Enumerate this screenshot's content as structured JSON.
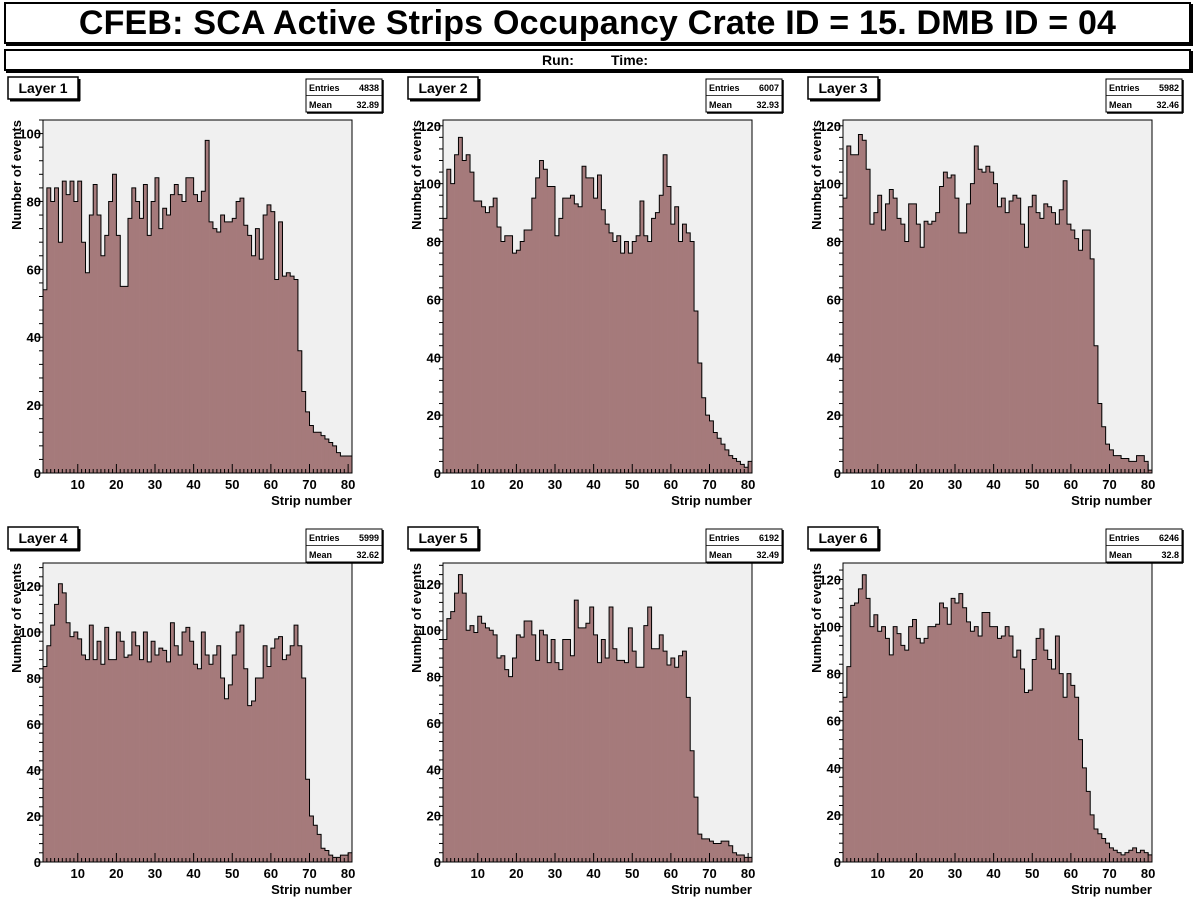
{
  "header": {
    "title": "CFEB: SCA Active Strips Occupancy Crate ID = 15. DMB ID = 04",
    "run_label": "Run:",
    "time_label": "Time:"
  },
  "colors": {
    "fill": "#a57a7b",
    "plot_bg": "#f0f0f0",
    "line": "#000000"
  },
  "chart_data": [
    {
      "type": "bar",
      "title": "Layer 1",
      "stats": {
        "entries_label": "Entries",
        "entries": "4838",
        "mean_label": "Mean",
        "mean": "32.89"
      },
      "xlabel": "Strip number",
      "ylabel": "Number of events",
      "xlim": [
        1,
        81
      ],
      "ylim": [
        0,
        104
      ],
      "xticks": [
        10,
        20,
        30,
        40,
        50,
        60,
        70,
        80
      ],
      "yticks": [
        0,
        20,
        40,
        60,
        80,
        100
      ],
      "ytick_labels": [
        "0",
        "20",
        "40",
        "60",
        "80",
        "100"
      ],
      "values": [
        54,
        84,
        80,
        84,
        68,
        86,
        82,
        86,
        80,
        86,
        68,
        59,
        76,
        85,
        76,
        64,
        70,
        80,
        88,
        70,
        55,
        55,
        75,
        84,
        80,
        75,
        85,
        70,
        80,
        87,
        72,
        78,
        76,
        82,
        85,
        82,
        80,
        87,
        87,
        82,
        80,
        83,
        98,
        74,
        72,
        71,
        76,
        74,
        74,
        75,
        80,
        81,
        73,
        70,
        64,
        72,
        63,
        76,
        79,
        77,
        57,
        74,
        58,
        59,
        58,
        57,
        36,
        24,
        18,
        14,
        12,
        12,
        11,
        10,
        9,
        8,
        6,
        5,
        5,
        5
      ]
    },
    {
      "type": "bar",
      "title": "Layer 2",
      "stats": {
        "entries_label": "Entries",
        "entries": "6007",
        "mean_label": "Mean",
        "mean": "32.93"
      },
      "xlabel": "Strip number",
      "ylabel": "Number of events",
      "xlim": [
        1,
        81
      ],
      "ylim": [
        0,
        122
      ],
      "xticks": [
        10,
        20,
        30,
        40,
        50,
        60,
        70,
        80
      ],
      "yticks": [
        0,
        20,
        40,
        60,
        80,
        100,
        120
      ],
      "ytick_labels": [
        "0",
        "20",
        "40",
        "60",
        "80",
        "100",
        "120"
      ],
      "values": [
        88,
        105,
        100,
        110,
        116,
        108,
        110,
        104,
        94,
        94,
        92,
        90,
        92,
        95,
        85,
        80,
        82,
        82,
        76,
        77,
        80,
        84,
        84,
        95,
        102,
        108,
        105,
        99,
        99,
        82,
        88,
        95,
        95,
        96,
        93,
        92,
        106,
        102,
        102,
        95,
        103,
        91,
        86,
        83,
        80,
        82,
        76,
        80,
        76,
        80,
        82,
        94,
        82,
        80,
        88,
        90,
        96,
        110,
        99,
        86,
        92,
        80,
        86,
        83,
        80,
        56,
        38,
        26,
        20,
        18,
        14,
        12,
        10,
        8,
        6,
        5,
        4,
        3,
        2,
        4
      ]
    },
    {
      "type": "bar",
      "title": "Layer 3",
      "stats": {
        "entries_label": "Entries",
        "entries": "5982",
        "mean_label": "Mean",
        "mean": "32.46"
      },
      "xlabel": "Strip number",
      "ylabel": "Number of events",
      "xlim": [
        1,
        81
      ],
      "ylim": [
        0,
        122
      ],
      "xticks": [
        10,
        20,
        30,
        40,
        50,
        60,
        70,
        80
      ],
      "yticks": [
        0,
        20,
        40,
        60,
        80,
        100,
        120
      ],
      "ytick_labels": [
        "0",
        "20",
        "40",
        "60",
        "80",
        "100",
        "120"
      ],
      "values": [
        95,
        113,
        110,
        110,
        117,
        115,
        105,
        86,
        90,
        96,
        84,
        93,
        98,
        95,
        88,
        86,
        80,
        93,
        93,
        86,
        78,
        87,
        86,
        87,
        90,
        99,
        104,
        102,
        103,
        95,
        83,
        83,
        93,
        100,
        113,
        105,
        104,
        106,
        104,
        100,
        92,
        95,
        90,
        94,
        96,
        95,
        86,
        78,
        92,
        96,
        90,
        88,
        93,
        92,
        90,
        86,
        91,
        101,
        86,
        84,
        81,
        77,
        84,
        84,
        74,
        44,
        24,
        16,
        10,
        8,
        6,
        6,
        5,
        5,
        4,
        4,
        6,
        6,
        4,
        1
      ]
    },
    {
      "type": "bar",
      "title": "Layer 4",
      "stats": {
        "entries_label": "Entries",
        "entries": "5999",
        "mean_label": "Mean",
        "mean": "32.62"
      },
      "xlabel": "Strip number",
      "ylabel": "Number of events",
      "xlim": [
        1,
        81
      ],
      "ylim": [
        0,
        130
      ],
      "xticks": [
        10,
        20,
        30,
        40,
        50,
        60,
        70,
        80
      ],
      "yticks": [
        0,
        20,
        40,
        60,
        80,
        100,
        120
      ],
      "ytick_labels": [
        "0",
        "20",
        "40",
        "60",
        "80",
        "100",
        "120"
      ],
      "values": [
        85,
        94,
        103,
        112,
        121,
        117,
        104,
        98,
        100,
        97,
        90,
        88,
        103,
        88,
        96,
        86,
        102,
        88,
        88,
        100,
        96,
        89,
        90,
        100,
        94,
        88,
        100,
        87,
        96,
        90,
        93,
        92,
        87,
        104,
        94,
        90,
        100,
        102,
        96,
        86,
        84,
        100,
        90,
        86,
        90,
        94,
        80,
        71,
        77,
        90,
        100,
        103,
        84,
        68,
        70,
        80,
        80,
        94,
        85,
        93,
        97,
        98,
        88,
        90,
        94,
        103,
        94,
        80,
        36,
        20,
        16,
        12,
        6,
        5,
        3,
        2,
        2,
        3,
        3,
        4
      ]
    },
    {
      "type": "bar",
      "title": "Layer 5",
      "stats": {
        "entries_label": "Entries",
        "entries": "6192",
        "mean_label": "Mean",
        "mean": "32.49"
      },
      "xlabel": "Strip number",
      "ylabel": "Number of events",
      "xlim": [
        1,
        81
      ],
      "ylim": [
        0,
        129
      ],
      "xticks": [
        10,
        20,
        30,
        40,
        50,
        60,
        70,
        80
      ],
      "yticks": [
        0,
        20,
        40,
        60,
        80,
        100,
        120
      ],
      "ytick_labels": [
        "0",
        "20",
        "40",
        "60",
        "80",
        "100",
        "120"
      ],
      "values": [
        96,
        105,
        108,
        116,
        124,
        116,
        100,
        102,
        99,
        106,
        103,
        101,
        100,
        98,
        88,
        89,
        83,
        80,
        88,
        98,
        97,
        104,
        104,
        98,
        87,
        100,
        98,
        86,
        96,
        86,
        83,
        96,
        96,
        89,
        113,
        101,
        101,
        103,
        110,
        98,
        86,
        96,
        88,
        110,
        92,
        87,
        87,
        86,
        101,
        91,
        84,
        84,
        102,
        110,
        92,
        92,
        98,
        91,
        85,
        88,
        84,
        89,
        91,
        71,
        48,
        28,
        12,
        10,
        10,
        9,
        8,
        8,
        9,
        9,
        7,
        4,
        3,
        3,
        2,
        2
      ]
    },
    {
      "type": "bar",
      "title": "Layer 6",
      "stats": {
        "entries_label": "Entries",
        "entries": "6246",
        "mean_label": "Mean",
        "mean": "32.8"
      },
      "xlabel": "Strip number",
      "ylabel": "Number of events",
      "xlim": [
        1,
        81
      ],
      "ylim": [
        0,
        127
      ],
      "xticks": [
        10,
        20,
        30,
        40,
        50,
        60,
        70,
        80
      ],
      "yticks": [
        0,
        20,
        40,
        60,
        80,
        100,
        120
      ],
      "ytick_labels": [
        "0",
        "20",
        "40",
        "60",
        "80",
        "100",
        "120"
      ],
      "values": [
        70,
        83,
        109,
        110,
        116,
        122,
        112,
        100,
        105,
        98,
        100,
        95,
        88,
        100,
        97,
        92,
        90,
        100,
        103,
        95,
        93,
        95,
        100,
        100,
        101,
        110,
        108,
        101,
        112,
        110,
        114,
        108,
        102,
        98,
        100,
        96,
        106,
        106,
        100,
        100,
        95,
        96,
        100,
        96,
        87,
        90,
        82,
        72,
        73,
        86,
        95,
        99,
        90,
        86,
        82,
        96,
        80,
        70,
        80,
        75,
        70,
        52,
        40,
        30,
        20,
        14,
        12,
        10,
        8,
        6,
        5,
        4,
        3,
        4,
        5,
        6,
        4,
        5,
        4,
        3
      ]
    }
  ]
}
